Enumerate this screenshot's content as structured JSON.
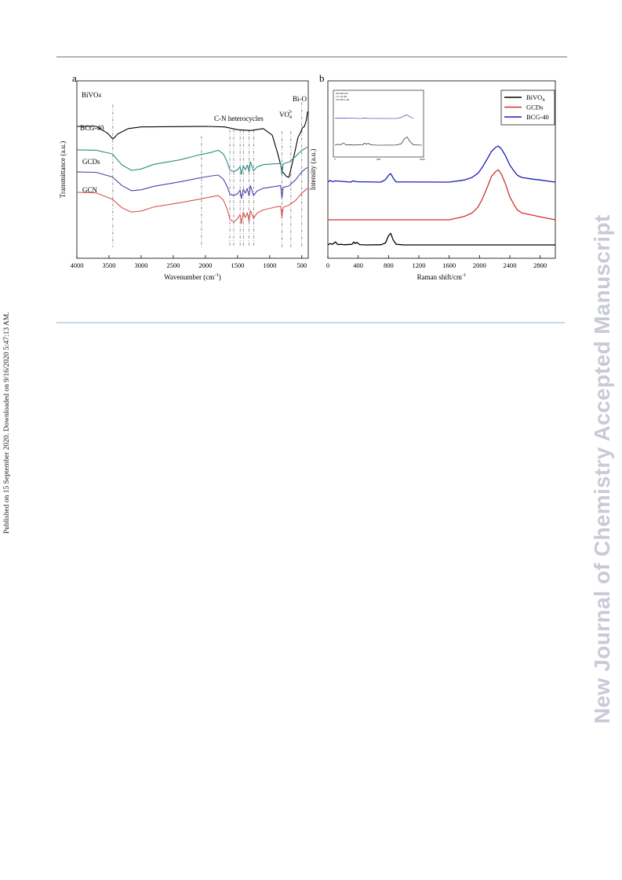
{
  "page": {
    "side_note": "Published on 15 September 2020. Downloaded on 9/16/2020 5:47:13 AM.",
    "watermark": "New Journal of Chemistry Accepted Manuscript"
  },
  "colors": {
    "black": "#000000",
    "teal": "#2e8b80",
    "purple": "#4a43a8",
    "salmon": "#d9534f",
    "red": "#d32f2f",
    "blue": "#1c1cb8"
  },
  "chart_data": [
    {
      "panel_label": "a",
      "type": "line",
      "xlabel": "Wavenumber (cm-1)",
      "ylabel": "Transmittance (a.u.)",
      "xlim": [
        4000,
        400
      ],
      "x_reversed": true,
      "xticks": [
        4000,
        3500,
        3000,
        2500,
        2000,
        1500,
        1000,
        500
      ],
      "yticks": "none",
      "series": [
        {
          "name": "BiVO4",
          "color": "#000000",
          "points": [
            [
              4000,
              24
            ],
            [
              3700,
              24
            ],
            [
              3520,
              21.5
            ],
            [
              3440,
              19.4
            ],
            [
              3360,
              21.3
            ],
            [
              3200,
              23.2
            ],
            [
              3000,
              23.8
            ],
            [
              2000,
              24
            ],
            [
              1700,
              23.8
            ],
            [
              1500,
              22.8
            ],
            [
              1300,
              22.5
            ],
            [
              1100,
              23.2
            ],
            [
              960,
              20.8
            ],
            [
              880,
              14.5
            ],
            [
              800,
              7.5
            ],
            [
              740,
              5.8
            ],
            [
              700,
              5.5
            ],
            [
              680,
              7.5
            ],
            [
              620,
              13.5
            ],
            [
              560,
              20
            ],
            [
              520,
              21.8
            ],
            [
              490,
              23.5
            ],
            [
              460,
              24
            ],
            [
              430,
              26.2
            ],
            [
              410,
              29.4
            ]
          ]
        },
        {
          "name": "BCG-40",
          "color": "#2e8b80",
          "points": [
            [
              4000,
              15.5
            ],
            [
              3700,
              15.3
            ],
            [
              3450,
              14
            ],
            [
              3300,
              10
            ],
            [
              3150,
              8
            ],
            [
              3000,
              8.5
            ],
            [
              2800,
              10.2
            ],
            [
              2400,
              11.8
            ],
            [
              2100,
              13.6
            ],
            [
              1900,
              14.6
            ],
            [
              1800,
              15.3
            ],
            [
              1720,
              14
            ],
            [
              1660,
              11
            ],
            [
              1620,
              8.1
            ],
            [
              1560,
              7.5
            ],
            [
              1500,
              8.2
            ],
            [
              1460,
              9.3
            ],
            [
              1440,
              6.6
            ],
            [
              1410,
              9.7
            ],
            [
              1380,
              8.2
            ],
            [
              1350,
              9.9
            ],
            [
              1320,
              7.5
            ],
            [
              1300,
              11.2
            ],
            [
              1250,
              7.8
            ],
            [
              1200,
              9.2
            ],
            [
              1100,
              10.1
            ],
            [
              900,
              10.4
            ],
            [
              830,
              10.5
            ],
            [
              810,
              6.4
            ],
            [
              790,
              10.4
            ],
            [
              700,
              11
            ],
            [
              600,
              13
            ],
            [
              500,
              15.3
            ],
            [
              430,
              16.2
            ],
            [
              410,
              16.4
            ]
          ]
        },
        {
          "name": "GCDs",
          "color": "#4a43a8",
          "points": [
            [
              4000,
              7.4
            ],
            [
              3700,
              7.3
            ],
            [
              3450,
              5.6
            ],
            [
              3300,
              2.5
            ],
            [
              3150,
              0.6
            ],
            [
              3000,
              0.9
            ],
            [
              2800,
              2.2
            ],
            [
              2400,
              3.8
            ],
            [
              2100,
              5.2
            ],
            [
              1900,
              6
            ],
            [
              1800,
              6.3
            ],
            [
              1720,
              4.8
            ],
            [
              1660,
              2
            ],
            [
              1620,
              -0.6
            ],
            [
              1560,
              -1.2
            ],
            [
              1500,
              -0.5
            ],
            [
              1460,
              0.8
            ],
            [
              1440,
              -2.2
            ],
            [
              1410,
              1.1
            ],
            [
              1380,
              -0.3
            ],
            [
              1350,
              1.4
            ],
            [
              1320,
              -1.3
            ],
            [
              1300,
              2.4
            ],
            [
              1250,
              -1.2
            ],
            [
              1200,
              0.4
            ],
            [
              1100,
              1.5
            ],
            [
              900,
              2.2
            ],
            [
              830,
              2.5
            ],
            [
              810,
              -2.2
            ],
            [
              790,
              1.8
            ],
            [
              700,
              2.3
            ],
            [
              600,
              4.5
            ],
            [
              500,
              7.5
            ],
            [
              430,
              8.8
            ],
            [
              410,
              9
            ]
          ]
        },
        {
          "name": "GCN",
          "color": "#d9534f",
          "points": [
            [
              4000,
              0
            ],
            [
              3700,
              -0.2
            ],
            [
              3450,
              -2.5
            ],
            [
              3300,
              -5.6
            ],
            [
              3150,
              -7.2
            ],
            [
              3000,
              -6.8
            ],
            [
              2800,
              -5.3
            ],
            [
              2400,
              -3.8
            ],
            [
              2100,
              -2.5
            ],
            [
              1900,
              -1.6
            ],
            [
              1800,
              -1.2
            ],
            [
              1720,
              -2.8
            ],
            [
              1660,
              -6.2
            ],
            [
              1620,
              -9.8
            ],
            [
              1560,
              -10.8
            ],
            [
              1500,
              -9.6
            ],
            [
              1460,
              -8
            ],
            [
              1440,
              -11.3
            ],
            [
              1410,
              -7.2
            ],
            [
              1380,
              -9.2
            ],
            [
              1350,
              -7.4
            ],
            [
              1320,
              -10.6
            ],
            [
              1300,
              -6.6
            ],
            [
              1250,
              -9.5
            ],
            [
              1200,
              -7.7
            ],
            [
              1100,
              -6.4
            ],
            [
              900,
              -5.3
            ],
            [
              830,
              -5.1
            ],
            [
              810,
              -9.2
            ],
            [
              790,
              -5.5
            ],
            [
              700,
              -4.7
            ],
            [
              600,
              -3
            ],
            [
              500,
              -0.3
            ],
            [
              430,
              1.1
            ],
            [
              410,
              1.4
            ]
          ]
        }
      ],
      "annotations": {
        "series_labels": [
          {
            "text": "BiVO4",
            "series": "BiVO4"
          },
          {
            "text": "BCG-40",
            "series": "BCG-40"
          },
          {
            "text": "GCDs",
            "series": "GCDs"
          },
          {
            "text": "GCN",
            "series": "GCN"
          }
        ],
        "peak_labels": [
          "C-N heterocycles",
          "VO",
          "Bi-O"
        ],
        "vo_superscript": "3-",
        "vo_subscript": "4",
        "reference_lines_x": [
          3440,
          2060,
          1620,
          1560,
          1460,
          1410,
          1320,
          1250,
          810,
          670,
          500
        ]
      }
    },
    {
      "panel_label": "b",
      "type": "line",
      "xlabel": "Raman shift/cm-1",
      "ylabel": "Intensity (a.u.)",
      "xlim": [
        0,
        3000
      ],
      "xticks": [
        0,
        400,
        800,
        1200,
        1600,
        2000,
        2400,
        2800
      ],
      "yticks": "none",
      "legend": {
        "position": "top-right",
        "entries": [
          "BiVO4",
          "GCDs",
          "BCG-40"
        ]
      },
      "series": [
        {
          "name": "BiVO4",
          "color": "#000000",
          "points": [
            [
              0,
              0
            ],
            [
              30,
              0.4
            ],
            [
              60,
              0.2
            ],
            [
              100,
              0.9
            ],
            [
              130,
              0.1
            ],
            [
              180,
              0.2
            ],
            [
              210,
              0.05
            ],
            [
              320,
              0.2
            ],
            [
              340,
              0.9
            ],
            [
              360,
              0.4
            ],
            [
              380,
              0.8
            ],
            [
              420,
              0.1
            ],
            [
              500,
              0
            ],
            [
              700,
              0.05
            ],
            [
              760,
              0.6
            ],
            [
              800,
              2.8
            ],
            [
              830,
              3.5
            ],
            [
              860,
              1.6
            ],
            [
              900,
              0.2
            ],
            [
              1000,
              0
            ],
            [
              3000,
              0
            ]
          ]
        },
        {
          "name": "GCDs",
          "color": "#d32f2f",
          "points": [
            [
              0,
              0
            ],
            [
              1600,
              0
            ],
            [
              1800,
              0.8
            ],
            [
              1900,
              1.6
            ],
            [
              1980,
              3
            ],
            [
              2040,
              5
            ],
            [
              2100,
              7.6
            ],
            [
              2160,
              10.3
            ],
            [
              2220,
              11.5
            ],
            [
              2250,
              11.8
            ],
            [
              2290,
              10.7
            ],
            [
              2340,
              8.6
            ],
            [
              2400,
              5.4
            ],
            [
              2460,
              3.4
            ],
            [
              2500,
              2.3
            ],
            [
              2560,
              1.6
            ],
            [
              2700,
              1.1
            ],
            [
              2800,
              0.7
            ],
            [
              3000,
              0
            ]
          ]
        },
        {
          "name": "BCG-40",
          "color": "#1c1cb8",
          "points": [
            [
              0,
              0
            ],
            [
              30,
              0.4
            ],
            [
              60,
              0.1
            ],
            [
              100,
              0.3
            ],
            [
              300,
              0
            ],
            [
              330,
              0.3
            ],
            [
              380,
              0.1
            ],
            [
              700,
              0
            ],
            [
              760,
              0.6
            ],
            [
              800,
              1.6
            ],
            [
              830,
              2
            ],
            [
              870,
              0.7
            ],
            [
              900,
              0.05
            ],
            [
              1600,
              0
            ],
            [
              1800,
              0.5
            ],
            [
              1900,
              1.1
            ],
            [
              1980,
              2.1
            ],
            [
              2040,
              3.6
            ],
            [
              2100,
              5.4
            ],
            [
              2160,
              7.3
            ],
            [
              2220,
              8.3
            ],
            [
              2250,
              8.5
            ],
            [
              2290,
              7.8
            ],
            [
              2340,
              6.3
            ],
            [
              2400,
              4
            ],
            [
              2460,
              2.5
            ],
            [
              2500,
              1.6
            ],
            [
              2560,
              1.1
            ],
            [
              2700,
              0.7
            ],
            [
              2800,
              0.5
            ],
            [
              3000,
              0
            ]
          ]
        }
      ],
      "inset": {
        "legend_entries": [
          "BiVO4",
          "GCDs",
          "BCG-40"
        ],
        "xticks": [
          0,
          500,
          1000
        ],
        "xlim": [
          0,
          1000
        ]
      }
    }
  ]
}
